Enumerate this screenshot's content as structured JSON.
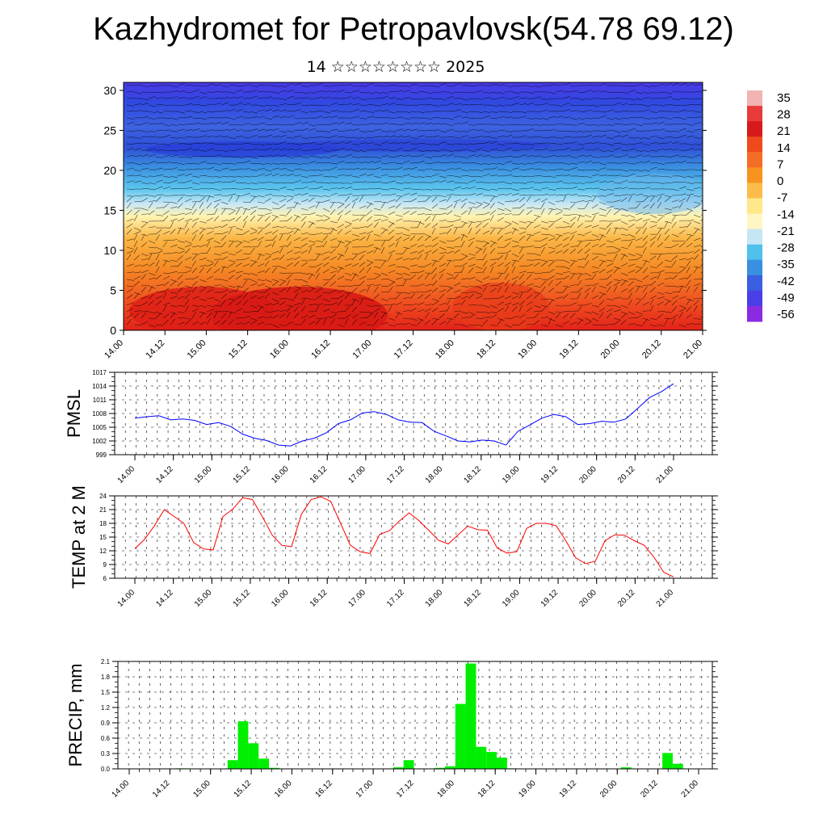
{
  "page": {
    "title": "Kazhydromet for Petropavlovsk(54.78 69.12)",
    "subtitle": "14 ☆☆☆☆☆☆☆☆ 2025"
  },
  "chart_data": [
    {
      "type": "heatmap",
      "name": "cross-section",
      "y_ticks": [
        "0",
        "5",
        "10",
        "15",
        "20",
        "25",
        "30"
      ],
      "ylim": [
        0,
        31
      ],
      "x_ticks": [
        "14.00",
        "14.12",
        "15.00",
        "15.12",
        "16.00",
        "16.12",
        "17.00",
        "17.12",
        "18.00",
        "18.12",
        "19.00",
        "19.12",
        "20.00",
        "20.12",
        "21.00"
      ],
      "colorbar_labels": [
        "35",
        "28",
        "21",
        "14",
        "7",
        "0",
        "-7",
        "-14",
        "-21",
        "-28",
        "-35",
        "-42",
        "-49",
        "-56"
      ],
      "colorbar_colors": [
        "#f2b3b3",
        "#e83a3a",
        "#d7191c",
        "#f04a1c",
        "#f46d26",
        "#f7931e",
        "#fdbb4a",
        "#fee88b",
        "#fff6c4",
        "#c6e6f5",
        "#4fc1ec",
        "#3990e0",
        "#3a5fe0",
        "#4a3fe6",
        "#8a2be2"
      ]
    },
    {
      "type": "line",
      "name": "PMSL",
      "ylabel": "PMSL",
      "ylim": [
        999,
        1017
      ],
      "y_ticks": [
        "999",
        "1002",
        "1005",
        "1008",
        "1011",
        "1014",
        "1017"
      ],
      "x_ticks": [
        "14.00",
        "14.12",
        "15.00",
        "15.12",
        "16.00",
        "16.12",
        "17.00",
        "17.12",
        "18.00",
        "18.12",
        "19.00",
        "19.12",
        "20.00",
        "20.12",
        "21.00"
      ],
      "color": "#0000ff",
      "values": [
        1007,
        1007.3,
        1007.5,
        1006.6,
        1006.8,
        1006.5,
        1005.6,
        1006,
        1005.2,
        1003.5,
        1002.6,
        1002.1,
        1001.1,
        1000.9,
        1002,
        1002.6,
        1003.8,
        1005.8,
        1006.6,
        1008.1,
        1008.4,
        1007.8,
        1006.6,
        1006.1,
        1006,
        1004.1,
        1003.1,
        1002,
        1001.8,
        1002.2,
        1002,
        1001.1,
        1004.1,
        1005.5,
        1007,
        1007.8,
        1007.3,
        1005.6,
        1005.8,
        1006.3,
        1006.1,
        1006.8,
        1009.1,
        1011.5,
        1012.8,
        1014.5
      ]
    },
    {
      "type": "line",
      "name": "TEMP",
      "ylabel": "TEMP at 2 M",
      "ylim": [
        6,
        24
      ],
      "y_ticks": [
        "6",
        "9",
        "12",
        "15",
        "18",
        "21",
        "24"
      ],
      "x_ticks": [
        "14.00",
        "14.12",
        "15.00",
        "15.12",
        "16.00",
        "16.12",
        "17.00",
        "17.12",
        "18.00",
        "18.12",
        "19.00",
        "19.12",
        "20.00",
        "20.12",
        "21.00"
      ],
      "color": "#ff0000",
      "values": [
        12.5,
        14.5,
        17.5,
        21,
        19.5,
        18,
        13.8,
        12.4,
        12.2,
        19.5,
        21.1,
        23.6,
        23.2,
        19.5,
        15.5,
        13.2,
        12.9,
        20,
        23.2,
        23.8,
        22.8,
        18,
        13.2,
        11.8,
        11.4,
        15.6,
        16.4,
        18.5,
        20.3,
        18.6,
        16.5,
        14.3,
        13.5,
        15.5,
        17.4,
        16.6,
        16.5,
        12.6,
        11.5,
        11.8,
        16.9,
        18,
        18,
        17.5,
        14.2,
        10.5,
        9.2,
        9.7,
        14.2,
        15.5,
        15.4,
        14.2,
        13.2,
        10.6,
        7.3,
        6.3
      ]
    },
    {
      "type": "bar",
      "name": "PRECIP",
      "ylabel": "PRECIP, mm",
      "ylim": [
        0,
        2.1
      ],
      "y_ticks": [
        "0.0",
        "0.3",
        "0.6",
        "0.9",
        "1.2",
        "1.5",
        "1.8",
        "2.1"
      ],
      "x_ticks": [
        "14.00",
        "14.12",
        "15.00",
        "15.12",
        "16.00",
        "16.12",
        "17.00",
        "17.12",
        "18.00",
        "18.12",
        "19.00",
        "19.12",
        "20.00",
        "20.12",
        "21.00"
      ],
      "color": "#00ee00",
      "values": [
        0,
        0,
        0,
        0,
        0,
        0.01,
        0,
        0,
        0,
        0,
        0.17,
        0.93,
        0.5,
        0.2,
        0.02,
        0,
        0,
        0,
        0,
        0,
        0,
        0,
        0,
        0,
        0,
        0,
        0.03,
        0.17,
        0,
        0,
        0.02,
        0.05,
        1.27,
        2.06,
        0.43,
        0.33,
        0.22,
        0.01,
        0,
        0,
        0,
        0,
        0,
        0,
        0,
        0,
        0,
        0,
        0.03,
        0,
        0,
        0,
        0.31,
        0.1,
        0,
        0
      ]
    }
  ]
}
